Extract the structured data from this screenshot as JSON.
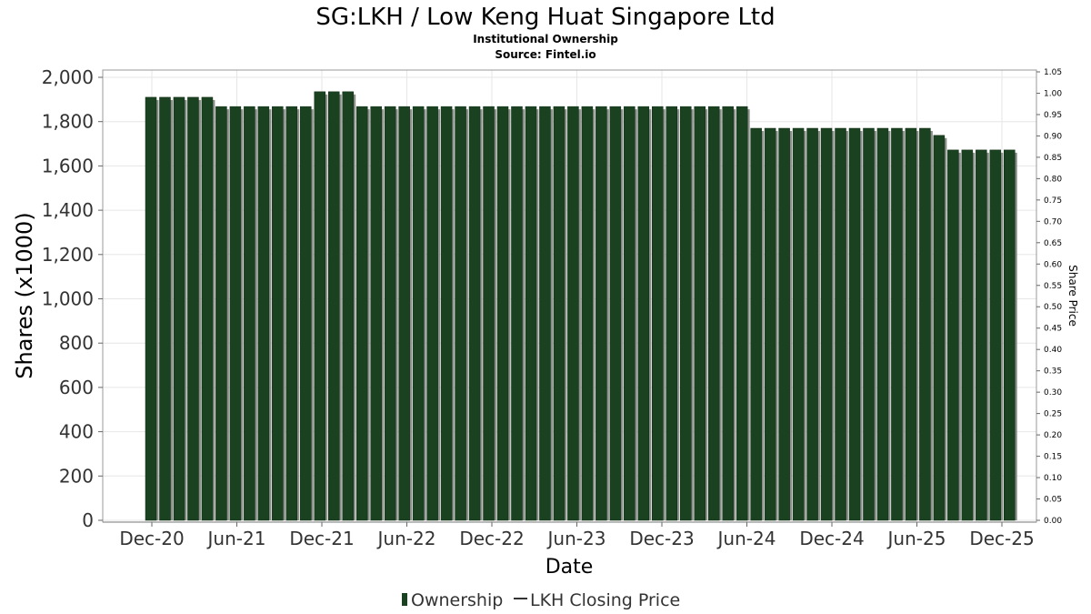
{
  "chart_data": {
    "type": "bar",
    "title": "SG:LKH / Low Keng Huat Singapore Ltd",
    "subtitle": "Institutional Ownership",
    "source": "Source: Fintel.io",
    "xlabel": "Date",
    "ylabel": "Shares (x1000)",
    "y2label": "Share Price",
    "ylim": [
      0,
      2050
    ],
    "y2lim": [
      0,
      1.05
    ],
    "yticks": [
      0,
      200,
      400,
      600,
      800,
      1000,
      1200,
      1400,
      1600,
      1800,
      2000
    ],
    "ytick_labels": [
      "0",
      "200",
      "400",
      "600",
      "800",
      "1,000",
      "1,200",
      "1,400",
      "1,600",
      "1,800",
      "2,000"
    ],
    "y2ticks": [
      "0.00",
      "0.05",
      "0.10",
      "0.15",
      "0.20",
      "0.25",
      "0.30",
      "0.35",
      "0.40",
      "0.45",
      "0.50",
      "0.55",
      "0.60",
      "0.65",
      "0.70",
      "0.75",
      "0.80",
      "0.85",
      "0.90",
      "0.95",
      "1.00",
      "1.05"
    ],
    "xticks": [
      "Dec-20",
      "Jun-21",
      "Dec-21",
      "Jun-22",
      "Dec-22",
      "Jun-23",
      "Dec-23",
      "Jun-24",
      "Dec-24",
      "Jun-25",
      "Dec-25"
    ],
    "legend": [
      "Ownership",
      "LKH Closing Price"
    ],
    "legend_position": "bottom",
    "bar_color": "#1a4220",
    "series": [
      {
        "name": "Ownership",
        "values": [
          1910,
          1910,
          1910,
          1910,
          1910,
          1868,
          1868,
          1868,
          1868,
          1868,
          1868,
          1868,
          1935,
          1935,
          1935,
          1868,
          1868,
          1868,
          1868,
          1868,
          1868,
          1868,
          1868,
          1868,
          1868,
          1868,
          1868,
          1868,
          1868,
          1868,
          1868,
          1868,
          1868,
          1868,
          1868,
          1868,
          1868,
          1868,
          1868,
          1868,
          1868,
          1868,
          1868,
          1770,
          1770,
          1770,
          1770,
          1770,
          1770,
          1770,
          1770,
          1770,
          1770,
          1770,
          1770,
          1770,
          1738,
          1672,
          1672,
          1672,
          1672,
          1672
        ]
      }
    ]
  }
}
